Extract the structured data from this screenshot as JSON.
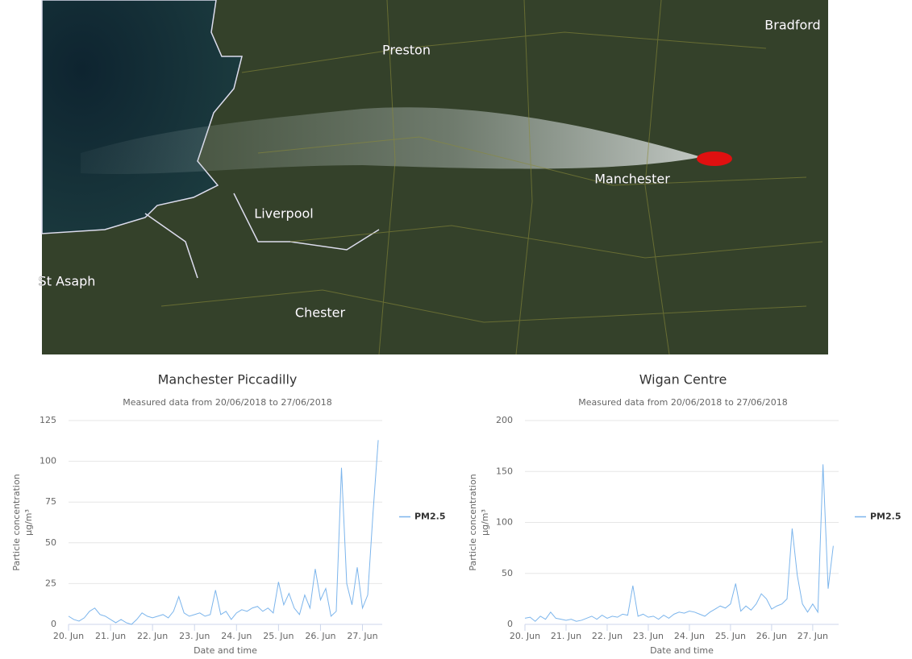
{
  "map": {
    "labels": [
      "Bradford",
      "Preston",
      "Manchester",
      "Liverpool",
      "St Asaph",
      "Chester"
    ]
  },
  "chart_data": [
    {
      "type": "line",
      "title": "Manchester Piccadilly",
      "subtitle": "Measured data from 20/06/2018 to 27/06/2018",
      "xlabel": "Date and time",
      "ylabel": "Particle concentration",
      "ylabel_unit": "μg/m³",
      "x": [
        20,
        20.125,
        20.25,
        20.375,
        20.5,
        20.625,
        20.75,
        20.875,
        21,
        21.125,
        21.25,
        21.375,
        21.5,
        21.625,
        21.75,
        21.875,
        22,
        22.125,
        22.25,
        22.375,
        22.5,
        22.625,
        22.75,
        22.875,
        23,
        23.125,
        23.25,
        23.375,
        23.5,
        23.625,
        23.75,
        23.875,
        24,
        24.125,
        24.25,
        24.375,
        24.5,
        24.625,
        24.75,
        24.875,
        25,
        25.125,
        25.25,
        25.375,
        25.5,
        25.625,
        25.75,
        25.875,
        26,
        26.125,
        26.25,
        26.375,
        26.5,
        26.625,
        26.75,
        26.875,
        27,
        27.125,
        27.25,
        27.375
      ],
      "series": [
        {
          "name": "PM2.5",
          "color": "#7cb5ec",
          "values": [
            5,
            3,
            2,
            4,
            8,
            10,
            6,
            5,
            3,
            1,
            3,
            1,
            0,
            3,
            7,
            5,
            4,
            5,
            6,
            4,
            8,
            17,
            7,
            5,
            6,
            7,
            5,
            6,
            21,
            6,
            8,
            3,
            7,
            9,
            8,
            10,
            11,
            8,
            10,
            7,
            26,
            12,
            19,
            10,
            6,
            18,
            10,
            34,
            15,
            22,
            5,
            8,
            96,
            25,
            12,
            35,
            10,
            18,
            68,
            113
          ]
        }
      ],
      "xlim": [
        20,
        27.47
      ],
      "xticks": [
        {
          "value": 20,
          "label": "20. Jun"
        },
        {
          "value": 21,
          "label": "21. Jun"
        },
        {
          "value": 22,
          "label": "22. Jun"
        },
        {
          "value": 23,
          "label": "23. Jun"
        },
        {
          "value": 24,
          "label": "24. Jun"
        },
        {
          "value": 25,
          "label": "25. Jun"
        },
        {
          "value": 26,
          "label": "26. Jun"
        },
        {
          "value": 27,
          "label": "27. Jun"
        }
      ],
      "ylim": [
        0,
        125
      ],
      "yticks": [
        0,
        25,
        50,
        75,
        100,
        125
      ],
      "grid": true,
      "legend": "right"
    },
    {
      "type": "line",
      "title": "Wigan Centre",
      "subtitle": "Measured data from 20/06/2018 to 27/06/2018",
      "xlabel": "Date and time",
      "ylabel": "Particle concentration",
      "ylabel_unit": "μg/m³",
      "x": [
        20,
        20.125,
        20.25,
        20.375,
        20.5,
        20.625,
        20.75,
        20.875,
        21,
        21.125,
        21.25,
        21.375,
        21.5,
        21.625,
        21.75,
        21.875,
        22,
        22.125,
        22.25,
        22.375,
        22.5,
        22.625,
        22.75,
        22.875,
        23,
        23.125,
        23.25,
        23.375,
        23.5,
        23.625,
        23.75,
        23.875,
        24,
        24.125,
        24.25,
        24.375,
        24.5,
        24.625,
        24.75,
        24.875,
        25,
        25.125,
        25.25,
        25.375,
        25.5,
        25.625,
        25.75,
        25.875,
        26,
        26.125,
        26.25,
        26.375,
        26.5,
        26.625,
        26.75,
        26.875,
        27,
        27.125,
        27.25,
        27.375,
        27.5
      ],
      "series": [
        {
          "name": "PM2.5",
          "color": "#7cb5ec",
          "values": [
            6,
            7,
            3,
            8,
            5,
            12,
            6,
            5,
            4,
            5,
            3,
            4,
            6,
            8,
            5,
            9,
            6,
            8,
            7,
            10,
            9,
            38,
            8,
            10,
            7,
            8,
            5,
            9,
            6,
            10,
            12,
            11,
            13,
            12,
            10,
            8,
            12,
            15,
            18,
            16,
            20,
            40,
            13,
            18,
            14,
            20,
            30,
            25,
            15,
            18,
            20,
            25,
            94,
            48,
            20,
            12,
            20,
            12,
            157,
            35,
            77
          ]
        }
      ],
      "xlim": [
        20,
        27.63
      ],
      "xticks": [
        {
          "value": 20,
          "label": "20. Jun"
        },
        {
          "value": 21,
          "label": "21. Jun"
        },
        {
          "value": 22,
          "label": "22. Jun"
        },
        {
          "value": 23,
          "label": "23. Jun"
        },
        {
          "value": 24,
          "label": "24. Jun"
        },
        {
          "value": 25,
          "label": "25. Jun"
        },
        {
          "value": 26,
          "label": "26. Jun"
        },
        {
          "value": 27,
          "label": "27. Jun"
        }
      ],
      "ylim": [
        0,
        200
      ],
      "yticks": [
        0,
        50,
        100,
        150,
        200
      ],
      "grid": true,
      "legend": "right"
    }
  ]
}
